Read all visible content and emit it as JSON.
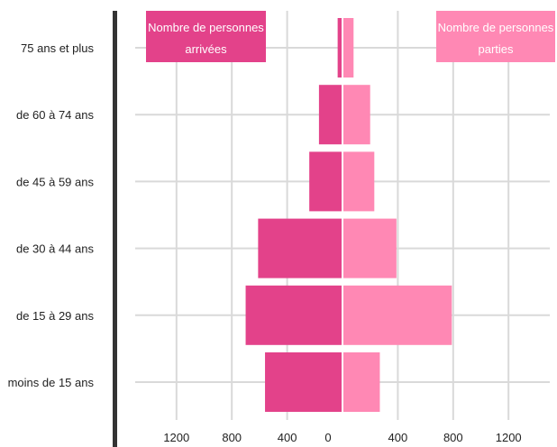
{
  "chart_data": {
    "type": "bar",
    "orientation": "horizontal-diverging",
    "categories": [
      "75 ans et plus",
      "de 60 à 74 ans",
      "de 45 à 59 ans",
      "de 30 à 44 ans",
      "de 15 à 29 ans",
      "moins de 15 ans"
    ],
    "series": [
      {
        "name": "Nombre de personnes arrivées",
        "values": [
          35,
          170,
          240,
          610,
          700,
          560
        ],
        "color": "#e3428a",
        "direction": "left"
      },
      {
        "name": "Nombre de personnes parties",
        "values": [
          80,
          200,
          230,
          390,
          790,
          270
        ],
        "color": "#ff88b4",
        "direction": "right"
      }
    ],
    "x_ticks": [
      {
        "value": -1200,
        "label": "1200"
      },
      {
        "value": -800,
        "label": "800"
      },
      {
        "value": -400,
        "label": "400"
      },
      {
        "value": 0,
        "label": "0"
      },
      {
        "value": 400,
        "label": "400"
      },
      {
        "value": 800,
        "label": "800"
      },
      {
        "value": 1200,
        "label": "1200"
      }
    ],
    "xlim": [
      -1500,
      1500
    ],
    "grid": true,
    "legend": [
      {
        "label_lines": [
          "Nombre de personnes",
          "arrivées"
        ],
        "color": "#e3428a",
        "placement": "top-left"
      },
      {
        "label_lines": [
          "Nombre de personnes",
          "parties"
        ],
        "color": "#ff88b4",
        "placement": "top-right"
      }
    ],
    "title": "",
    "xlabel": "",
    "ylabel": ""
  }
}
